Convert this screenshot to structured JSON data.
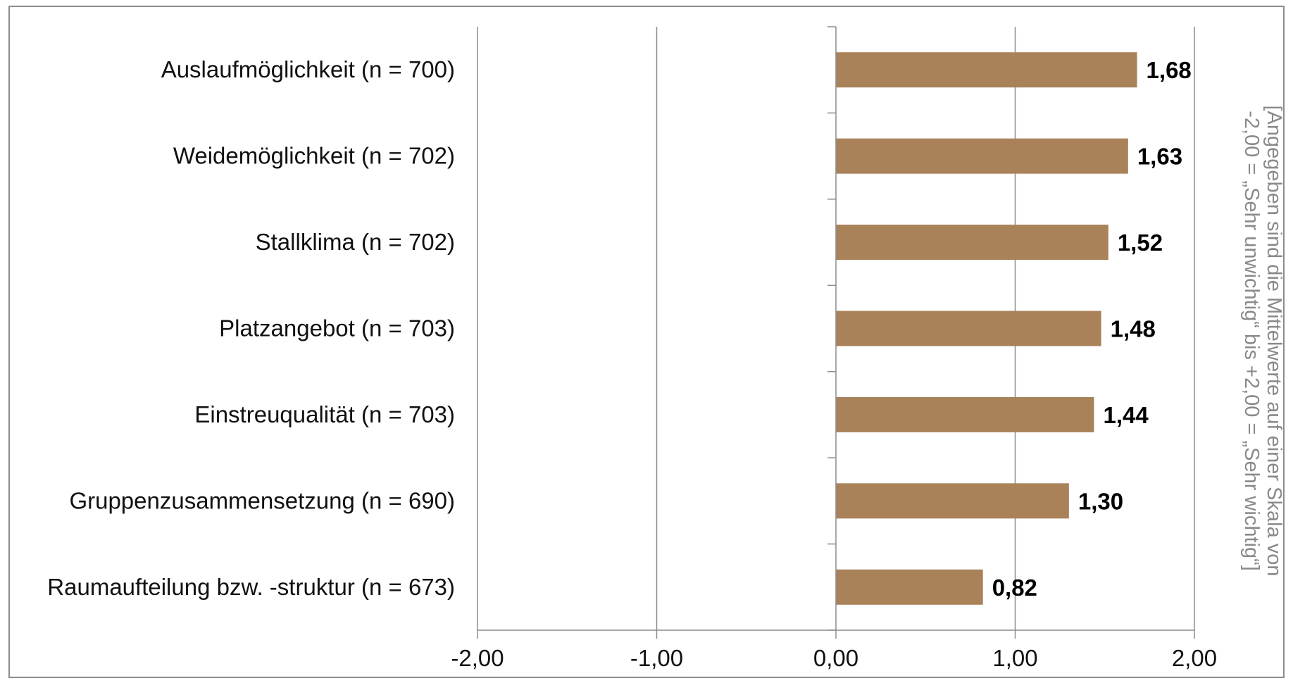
{
  "chart_data": {
    "type": "bar",
    "orientation": "horizontal",
    "categories": [
      "Auslaufmöglichkeit (n = 700)",
      "Weidemöglichkeit (n = 702)",
      "Stallklima (n = 702)",
      "Platzangebot (n = 703)",
      "Einstreuqualität (n = 703)",
      "Gruppenzusammensetzung (n = 690)",
      "Raumaufteilung bzw. -struktur (n = 673)"
    ],
    "values": [
      1.68,
      1.63,
      1.52,
      1.48,
      1.44,
      1.3,
      0.82
    ],
    "data_labels": [
      "1,68",
      "1,63",
      "1,52",
      "1,48",
      "1,44",
      "1,30",
      "0,82"
    ],
    "xlim": [
      -2,
      2
    ],
    "x_ticks": [
      -2,
      -1,
      0,
      1,
      2
    ],
    "x_tick_labels": [
      "-2,00",
      "-1,00",
      "0,00",
      "1,00",
      "2,00"
    ],
    "title": "",
    "xlabel": "",
    "ylabel": "",
    "grid": true,
    "legend": "none",
    "bar_color": "#a9825a",
    "side_note": [
      "[Angegeben sind die Mittelwerte auf einer Skala von",
      "-2,00 = „Sehr unwichtig“ bis +2,00 = „Sehr wichtig“]"
    ]
  }
}
